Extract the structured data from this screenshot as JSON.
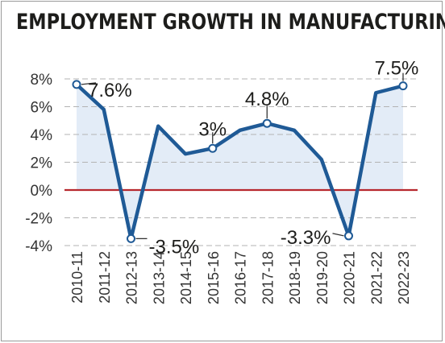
{
  "chart_data": {
    "type": "area",
    "title": "EMPLOYMENT GROWTH IN MANUFACTURING",
    "xlabel": "",
    "ylabel": "",
    "categories": [
      "2010-11",
      "2011-12",
      "2012-13",
      "2013-14",
      "2014-15",
      "2015-16",
      "2016-17",
      "2017-18",
      "2018-19",
      "2019-20",
      "2020-21",
      "2021-22",
      "2022-23"
    ],
    "series": [
      {
        "values": [
          7.6,
          5.8,
          -3.5,
          4.6,
          2.6,
          3.0,
          4.3,
          4.8,
          4.3,
          2.2,
          -3.3,
          7.0,
          7.5
        ]
      }
    ],
    "ylim": [
      -4,
      8
    ],
    "yticks": [
      -4,
      -2,
      0,
      2,
      4,
      6,
      8
    ],
    "ytick_labels": [
      "-4%",
      "-2%",
      "0%",
      "2%",
      "4%",
      "6%",
      "8%"
    ],
    "grid": "horizontal dashed",
    "zero_line_color": "#b7282e",
    "line_color": "#1f5a96",
    "fill_color": "#e3ecf7",
    "annotations": [
      {
        "index": 0,
        "text": "7.6%"
      },
      {
        "index": 2,
        "text": "-3.5%"
      },
      {
        "index": 5,
        "text": "3%"
      },
      {
        "index": 7,
        "text": "4.8%"
      },
      {
        "index": 10,
        "text": "-3.3%"
      },
      {
        "index": 12,
        "text": "7.5%"
      }
    ]
  }
}
